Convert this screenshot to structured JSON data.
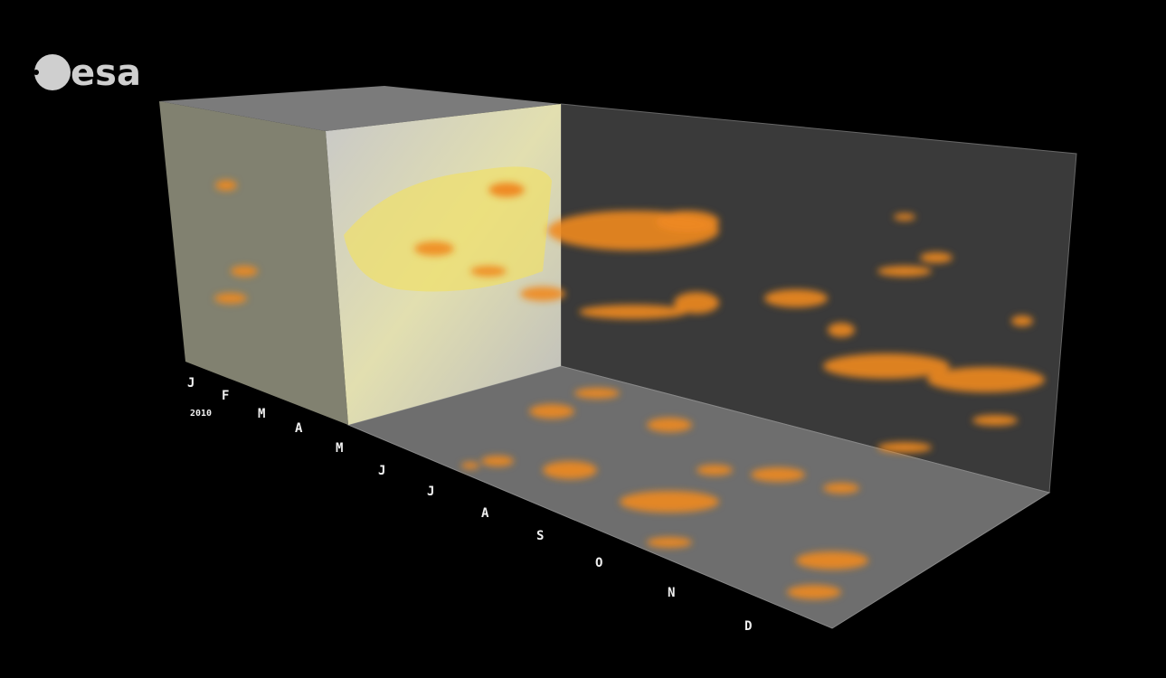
{
  "logo": {
    "text": "esa"
  },
  "axis": {
    "year": "2010",
    "months": [
      "J",
      "F",
      "M",
      "A",
      "M",
      "J",
      "J",
      "A",
      "S",
      "O",
      "N",
      "D"
    ]
  }
}
